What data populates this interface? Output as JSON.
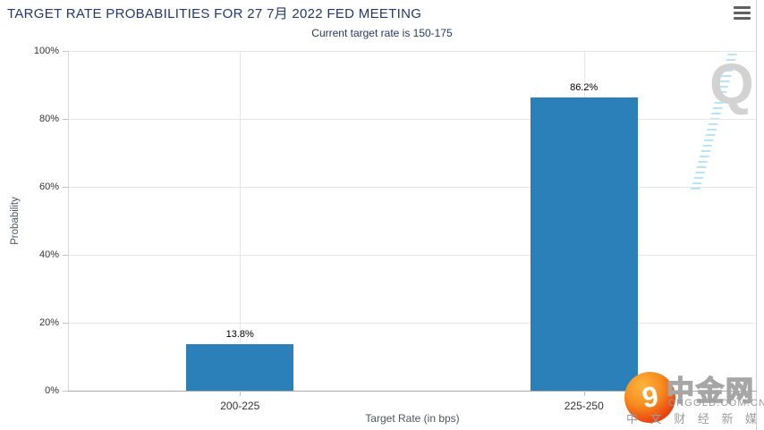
{
  "header": {
    "title": "TARGET RATE PROBABILITIES FOR 27 7月 2022 FED MEETING",
    "subtitle": "Current target rate is 150-175"
  },
  "icons": {
    "menu": "hamburger-icon",
    "watermark": "q-letter-watermark",
    "logo_swirl": "orange-swirl-ball"
  },
  "colors": {
    "title": "#25386b",
    "bar": "#2c80b9",
    "grid": "#e7e7e7",
    "axis_line": "#a9a9a9"
  },
  "chart_data": {
    "type": "bar",
    "title": "TARGET RATE PROBABILITIES FOR 27 7月 2022 FED MEETING",
    "subtitle": "Current target rate is 150-175",
    "categories": [
      "200-225",
      "225-250"
    ],
    "values": [
      13.8,
      86.2
    ],
    "data_labels": [
      "13.8%",
      "86.2%"
    ],
    "xlabel": "Target Rate (in bps)",
    "ylabel": "Probability",
    "ylim": [
      0,
      100
    ],
    "yticks": [
      "0%",
      "20%",
      "40%",
      "60%",
      "80%",
      "100%"
    ],
    "grid": true,
    "legend": "none",
    "bar_color": "#2c80b9"
  },
  "watermark": {
    "letter": "Q"
  },
  "logo": {
    "name": "中金网",
    "domain": "CNGOLD.COM.CN",
    "tagline": "中 文 财 经 新 媒 体",
    "swirl_glyph": "9"
  }
}
